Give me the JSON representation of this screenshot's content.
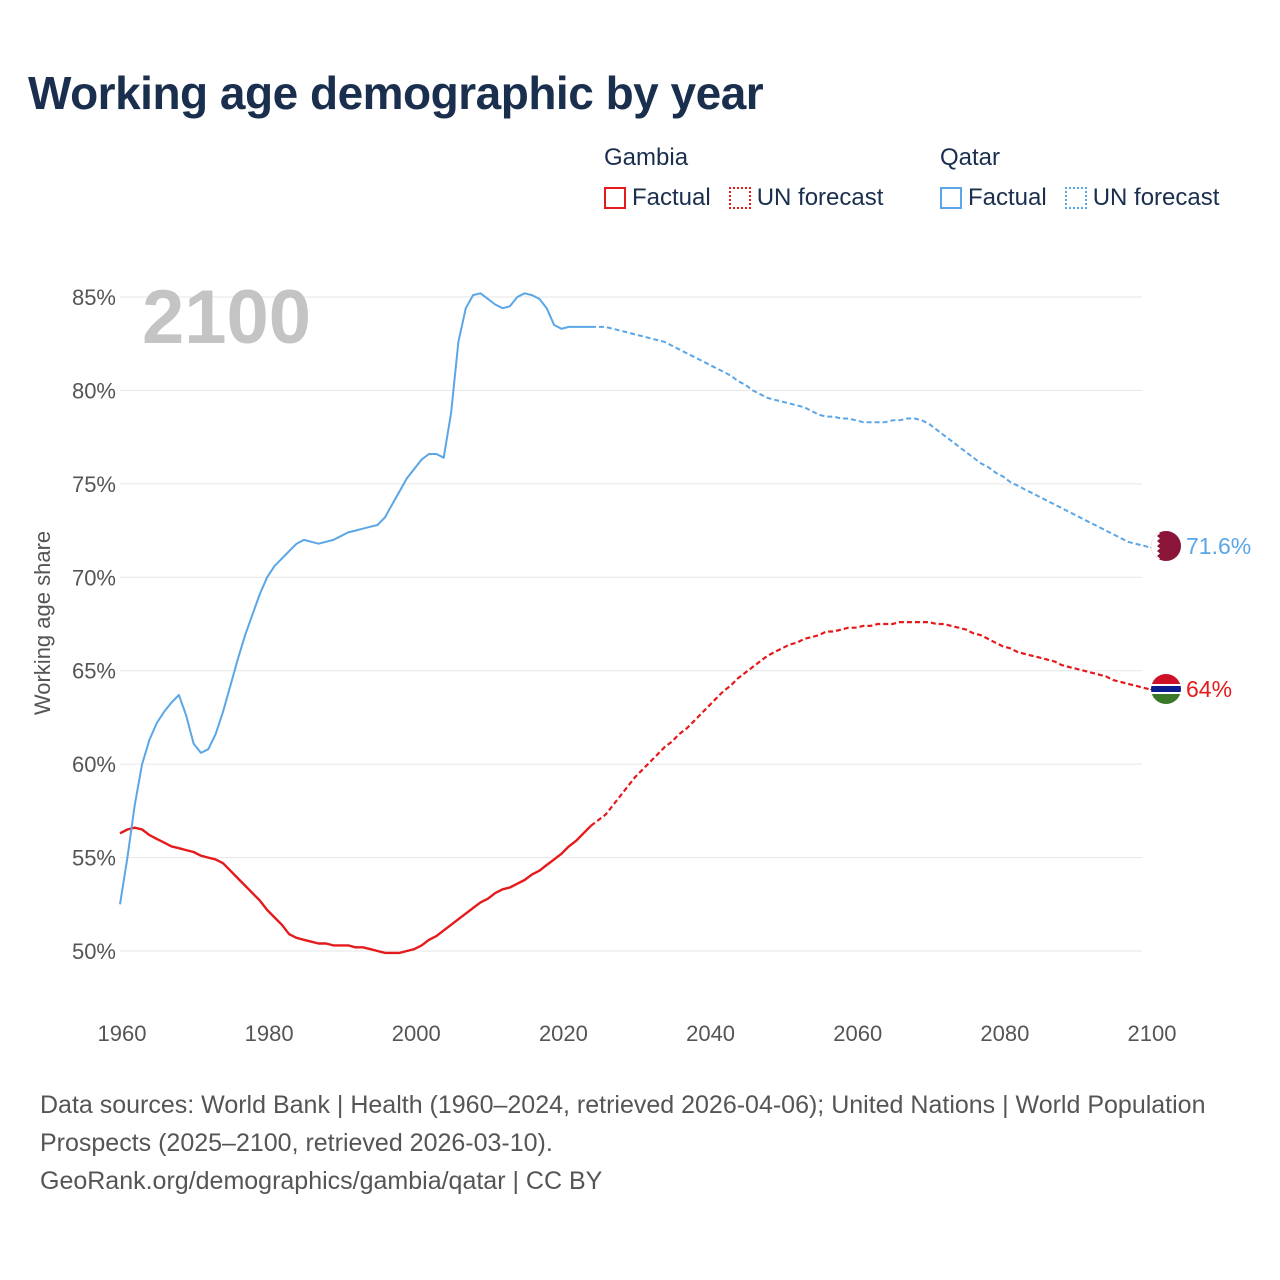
{
  "title": "Working age demographic by year",
  "legend": {
    "gambia": {
      "name": "Gambia",
      "factual": "Factual",
      "forecast": "UN forecast",
      "color": "#e41a1c"
    },
    "qatar": {
      "name": "Qatar",
      "factual": "Factual",
      "forecast": "UN forecast",
      "color": "#5aa6e6"
    }
  },
  "footer": {
    "sources": "Data sources: World Bank | Health (1960–2024, retrieved 2026-04-06); United Nations | World Population Prospects (2025–2100, retrieved 2026-03-10).",
    "url": "GeoRank.org/demographics/gambia/qatar | CC BY"
  },
  "chart_data": {
    "type": "line",
    "title": "Working age demographic by year",
    "xlabel": "",
    "ylabel": "Working age share",
    "xlim": [
      1960,
      2100
    ],
    "ylim": [
      48,
      86
    ],
    "xticks": [
      "1960",
      "1980",
      "2000",
      "2020",
      "2040",
      "2060",
      "2080",
      "2100"
    ],
    "xtick_values": [
      1960,
      1980,
      2000,
      2020,
      2040,
      2060,
      2080,
      2100
    ],
    "yticks": [
      "50%",
      "55%",
      "60%",
      "65%",
      "70%",
      "75%",
      "80%",
      "85%"
    ],
    "ytick_values": [
      50,
      55,
      60,
      65,
      70,
      75,
      80,
      85
    ],
    "current_year": "2100",
    "factual_end_year": 2024,
    "series": [
      {
        "name": "Gambia",
        "color": "#e41a1c",
        "end_label": "64%",
        "points": [
          [
            1960,
            56.3
          ],
          [
            1961,
            56.5
          ],
          [
            1962,
            56.6
          ],
          [
            1963,
            56.5
          ],
          [
            1964,
            56.2
          ],
          [
            1965,
            56.0
          ],
          [
            1966,
            55.8
          ],
          [
            1967,
            55.6
          ],
          [
            1968,
            55.5
          ],
          [
            1969,
            55.4
          ],
          [
            1970,
            55.3
          ],
          [
            1971,
            55.1
          ],
          [
            1972,
            55.0
          ],
          [
            1973,
            54.9
          ],
          [
            1974,
            54.7
          ],
          [
            1975,
            54.3
          ],
          [
            1976,
            53.9
          ],
          [
            1977,
            53.5
          ],
          [
            1978,
            53.1
          ],
          [
            1979,
            52.7
          ],
          [
            1980,
            52.2
          ],
          [
            1981,
            51.8
          ],
          [
            1982,
            51.4
          ],
          [
            1983,
            50.9
          ],
          [
            1984,
            50.7
          ],
          [
            1985,
            50.6
          ],
          [
            1986,
            50.5
          ],
          [
            1987,
            50.4
          ],
          [
            1988,
            50.4
          ],
          [
            1989,
            50.3
          ],
          [
            1990,
            50.3
          ],
          [
            1991,
            50.3
          ],
          [
            1992,
            50.2
          ],
          [
            1993,
            50.2
          ],
          [
            1994,
            50.1
          ],
          [
            1995,
            50.0
          ],
          [
            1996,
            49.9
          ],
          [
            1997,
            49.9
          ],
          [
            1998,
            49.9
          ],
          [
            1999,
            50.0
          ],
          [
            2000,
            50.1
          ],
          [
            2001,
            50.3
          ],
          [
            2002,
            50.6
          ],
          [
            2003,
            50.8
          ],
          [
            2004,
            51.1
          ],
          [
            2005,
            51.4
          ],
          [
            2006,
            51.7
          ],
          [
            2007,
            52.0
          ],
          [
            2008,
            52.3
          ],
          [
            2009,
            52.6
          ],
          [
            2010,
            52.8
          ],
          [
            2011,
            53.1
          ],
          [
            2012,
            53.3
          ],
          [
            2013,
            53.4
          ],
          [
            2014,
            53.6
          ],
          [
            2015,
            53.8
          ],
          [
            2016,
            54.1
          ],
          [
            2017,
            54.3
          ],
          [
            2018,
            54.6
          ],
          [
            2019,
            54.9
          ],
          [
            2020,
            55.2
          ],
          [
            2021,
            55.6
          ],
          [
            2022,
            55.9
          ],
          [
            2023,
            56.3
          ],
          [
            2024,
            56.7
          ],
          [
            2025,
            57.0
          ],
          [
            2026,
            57.3
          ],
          [
            2027,
            57.8
          ],
          [
            2028,
            58.3
          ],
          [
            2029,
            58.8
          ],
          [
            2030,
            59.3
          ],
          [
            2031,
            59.7
          ],
          [
            2032,
            60.1
          ],
          [
            2033,
            60.5
          ],
          [
            2034,
            60.9
          ],
          [
            2035,
            61.2
          ],
          [
            2036,
            61.6
          ],
          [
            2037,
            61.9
          ],
          [
            2038,
            62.3
          ],
          [
            2039,
            62.7
          ],
          [
            2040,
            63.1
          ],
          [
            2041,
            63.5
          ],
          [
            2042,
            63.9
          ],
          [
            2043,
            64.2
          ],
          [
            2044,
            64.6
          ],
          [
            2045,
            64.9
          ],
          [
            2046,
            65.2
          ],
          [
            2047,
            65.5
          ],
          [
            2048,
            65.8
          ],
          [
            2049,
            66.0
          ],
          [
            2050,
            66.2
          ],
          [
            2051,
            66.4
          ],
          [
            2052,
            66.5
          ],
          [
            2053,
            66.7
          ],
          [
            2054,
            66.8
          ],
          [
            2055,
            66.9
          ],
          [
            2056,
            67.1
          ],
          [
            2057,
            67.1
          ],
          [
            2058,
            67.2
          ],
          [
            2059,
            67.3
          ],
          [
            2060,
            67.3
          ],
          [
            2061,
            67.4
          ],
          [
            2062,
            67.4
          ],
          [
            2063,
            67.5
          ],
          [
            2064,
            67.5
          ],
          [
            2065,
            67.5
          ],
          [
            2066,
            67.6
          ],
          [
            2067,
            67.6
          ],
          [
            2068,
            67.6
          ],
          [
            2069,
            67.6
          ],
          [
            2070,
            67.6
          ],
          [
            2071,
            67.5
          ],
          [
            2072,
            67.5
          ],
          [
            2073,
            67.4
          ],
          [
            2074,
            67.3
          ],
          [
            2075,
            67.2
          ],
          [
            2076,
            67.0
          ],
          [
            2077,
            66.9
          ],
          [
            2078,
            66.7
          ],
          [
            2079,
            66.5
          ],
          [
            2080,
            66.3
          ],
          [
            2081,
            66.2
          ],
          [
            2082,
            66.0
          ],
          [
            2083,
            65.9
          ],
          [
            2084,
            65.8
          ],
          [
            2085,
            65.7
          ],
          [
            2086,
            65.6
          ],
          [
            2087,
            65.5
          ],
          [
            2088,
            65.3
          ],
          [
            2089,
            65.2
          ],
          [
            2090,
            65.1
          ],
          [
            2091,
            65.0
          ],
          [
            2092,
            64.9
          ],
          [
            2093,
            64.8
          ],
          [
            2094,
            64.7
          ],
          [
            2095,
            64.5
          ],
          [
            2096,
            64.4
          ],
          [
            2097,
            64.3
          ],
          [
            2098,
            64.2
          ],
          [
            2099,
            64.1
          ],
          [
            2100,
            64.0
          ]
        ]
      },
      {
        "name": "Qatar",
        "color": "#5aa6e6",
        "end_label": "71.6%",
        "points": [
          [
            1960,
            52.5
          ],
          [
            1961,
            55.0
          ],
          [
            1962,
            57.8
          ],
          [
            1963,
            60.0
          ],
          [
            1964,
            61.3
          ],
          [
            1965,
            62.2
          ],
          [
            1966,
            62.8
          ],
          [
            1967,
            63.3
          ],
          [
            1968,
            63.7
          ],
          [
            1969,
            62.6
          ],
          [
            1970,
            61.1
          ],
          [
            1971,
            60.6
          ],
          [
            1972,
            60.8
          ],
          [
            1973,
            61.6
          ],
          [
            1974,
            62.8
          ],
          [
            1975,
            64.2
          ],
          [
            1976,
            65.6
          ],
          [
            1977,
            66.9
          ],
          [
            1978,
            68.0
          ],
          [
            1979,
            69.1
          ],
          [
            1980,
            70.0
          ],
          [
            1981,
            70.6
          ],
          [
            1982,
            71.0
          ],
          [
            1983,
            71.4
          ],
          [
            1984,
            71.8
          ],
          [
            1985,
            72.0
          ],
          [
            1986,
            71.9
          ],
          [
            1987,
            71.8
          ],
          [
            1988,
            71.9
          ],
          [
            1989,
            72.0
          ],
          [
            1990,
            72.2
          ],
          [
            1991,
            72.4
          ],
          [
            1992,
            72.5
          ],
          [
            1993,
            72.6
          ],
          [
            1994,
            72.7
          ],
          [
            1995,
            72.8
          ],
          [
            1996,
            73.2
          ],
          [
            1997,
            73.9
          ],
          [
            1998,
            74.6
          ],
          [
            1999,
            75.3
          ],
          [
            2000,
            75.8
          ],
          [
            2001,
            76.3
          ],
          [
            2002,
            76.6
          ],
          [
            2003,
            76.6
          ],
          [
            2004,
            76.4
          ],
          [
            2005,
            78.8
          ],
          [
            2006,
            82.6
          ],
          [
            2007,
            84.4
          ],
          [
            2008,
            85.1
          ],
          [
            2009,
            85.2
          ],
          [
            2010,
            84.9
          ],
          [
            2011,
            84.6
          ],
          [
            2012,
            84.4
          ],
          [
            2013,
            84.5
          ],
          [
            2014,
            85.0
          ],
          [
            2015,
            85.2
          ],
          [
            2016,
            85.1
          ],
          [
            2017,
            84.9
          ],
          [
            2018,
            84.4
          ],
          [
            2019,
            83.5
          ],
          [
            2020,
            83.3
          ],
          [
            2021,
            83.4
          ],
          [
            2022,
            83.4
          ],
          [
            2023,
            83.4
          ],
          [
            2024,
            83.4
          ],
          [
            2025,
            83.4
          ],
          [
            2026,
            83.4
          ],
          [
            2027,
            83.3
          ],
          [
            2028,
            83.2
          ],
          [
            2029,
            83.1
          ],
          [
            2030,
            83.0
          ],
          [
            2031,
            82.9
          ],
          [
            2032,
            82.8
          ],
          [
            2033,
            82.7
          ],
          [
            2034,
            82.6
          ],
          [
            2035,
            82.4
          ],
          [
            2036,
            82.2
          ],
          [
            2037,
            82.0
          ],
          [
            2038,
            81.8
          ],
          [
            2039,
            81.6
          ],
          [
            2040,
            81.4
          ],
          [
            2041,
            81.2
          ],
          [
            2042,
            81.0
          ],
          [
            2043,
            80.8
          ],
          [
            2044,
            80.5
          ],
          [
            2045,
            80.3
          ],
          [
            2046,
            80.0
          ],
          [
            2047,
            79.8
          ],
          [
            2048,
            79.6
          ],
          [
            2049,
            79.5
          ],
          [
            2050,
            79.4
          ],
          [
            2051,
            79.3
          ],
          [
            2052,
            79.2
          ],
          [
            2053,
            79.1
          ],
          [
            2054,
            78.9
          ],
          [
            2055,
            78.7
          ],
          [
            2056,
            78.6
          ],
          [
            2057,
            78.6
          ],
          [
            2058,
            78.5
          ],
          [
            2059,
            78.5
          ],
          [
            2060,
            78.4
          ],
          [
            2061,
            78.3
          ],
          [
            2062,
            78.3
          ],
          [
            2063,
            78.3
          ],
          [
            2064,
            78.3
          ],
          [
            2065,
            78.4
          ],
          [
            2066,
            78.4
          ],
          [
            2067,
            78.5
          ],
          [
            2068,
            78.5
          ],
          [
            2069,
            78.4
          ],
          [
            2070,
            78.2
          ],
          [
            2071,
            77.9
          ],
          [
            2072,
            77.6
          ],
          [
            2073,
            77.3
          ],
          [
            2074,
            77.0
          ],
          [
            2075,
            76.7
          ],
          [
            2076,
            76.4
          ],
          [
            2077,
            76.1
          ],
          [
            2078,
            75.9
          ],
          [
            2079,
            75.6
          ],
          [
            2080,
            75.4
          ],
          [
            2081,
            75.1
          ],
          [
            2082,
            74.9
          ],
          [
            2083,
            74.7
          ],
          [
            2084,
            74.5
          ],
          [
            2085,
            74.3
          ],
          [
            2086,
            74.1
          ],
          [
            2087,
            73.9
          ],
          [
            2088,
            73.7
          ],
          [
            2089,
            73.5
          ],
          [
            2090,
            73.3
          ],
          [
            2091,
            73.1
          ],
          [
            2092,
            72.9
          ],
          [
            2093,
            72.7
          ],
          [
            2094,
            72.5
          ],
          [
            2095,
            72.3
          ],
          [
            2096,
            72.1
          ],
          [
            2097,
            71.9
          ],
          [
            2098,
            71.8
          ],
          [
            2099,
            71.7
          ],
          [
            2100,
            71.6
          ]
        ]
      }
    ]
  }
}
